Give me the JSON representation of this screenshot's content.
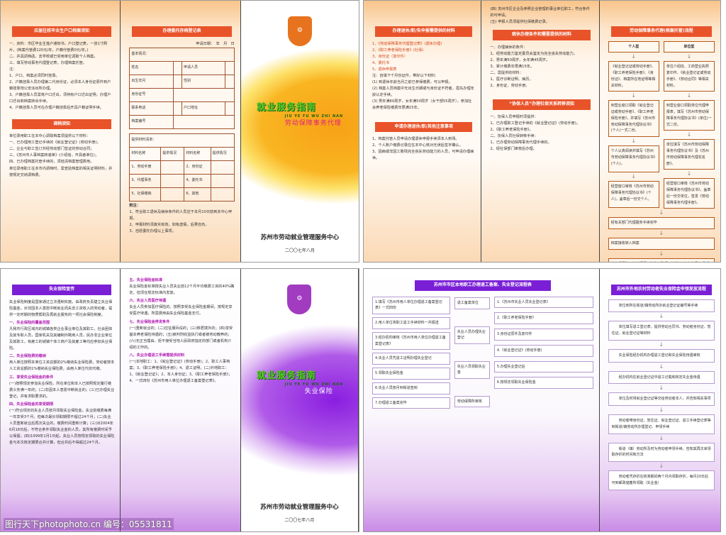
{
  "brochure_employment": {
    "panel1": {
      "head1": "应届往校毕业生户口档案须知",
      "items1": [
        "一、资料：市区毕业生落户通知书，户口登记表，一张1寸照片，(档案代管费120元/年，户籍代管费0元/年。)",
        "二、并具调档函，去学校或已受用单位调取个人档案。",
        "三、填写劳动事务代理登记表，办理档案托管。",
        "注：",
        "1、户口、档案必须同时挂靠。",
        "2、户籍挂靠人员办理第二代身份证，必须本人身份证原件到户籍挂靠地公安派出所办理。",
        "3、户籍挂靠人员需将户口迁出，须持有户口迁出证明，办理户口迁出和档案转出手续。",
        "4、户籍挂靠人员可在办理户籍挂靠后开具户籍证明手续。"
      ],
      "head2": "调档须知",
      "items2": [
        "单位录用职工在本中心调取档案须提供以下材料：",
        "一、已办理用工登记手续的《就业登记证》(劳动手册)；",
        "二、企业与职工签订并经劳动部门签证的劳动合同；",
        "三、《苏州市人事档案转递单》(介绍信，开具者单位)；",
        "四、已办理档案托管手续的，须结清档案管理费用。",
        "单位录用职工在本市内调档时，需查验档案的相关证明材料，并按规定交纳调档费。"
      ]
    },
    "panel2": {
      "head": "办理委托存档登记表",
      "date_row": "申请日期：　年　月　日",
      "section1": "基本情况：",
      "fields": [
        "姓名",
        "申请人员",
        "出生年月",
        "性别",
        "身份证号",
        "联系电话",
        "户口地址",
        "档案编号"
      ],
      "section2": "提供材料清单：",
      "materials_header": [
        "材料名称",
        "提供情况"
      ],
      "materials": [
        "1、劳动手册",
        "2、身份证",
        "3、代理事务",
        "4、委托书",
        "5、社保缴纳",
        "6、其他"
      ],
      "notes_head": "附注：",
      "notes": [
        "1、符合职工退休及病休条件的人员应于本月10日前到本中心申报。",
        "2、申报材料须真实有效，如有虚假，后果自负。",
        "3、自愿委托办理以上事项。"
      ]
    },
    "cover": {
      "title": "就业服务指南",
      "pinyin": "JIU YE FU WU ZHI NAN",
      "subtitle": "劳动保障事务代理",
      "org": "苏州市劳动就业管理服务中心",
      "org_pinyin": "SU ZHOU SHI LAO DONG JIU YE GUAN LI FU WU ZHONG XIN",
      "date": "二〇〇七年八月",
      "logo_text": "劳动"
    }
  },
  "brochure_agency": {
    "panel1": {
      "head1": "办理退休/职/失申报需提供的材料",
      "items1": [
        "1、《劳动保障事务代理登记表》(退休办理)",
        "2、《职工养老保险手册》(社保)",
        "3、身份证（复印件）",
        "4、委托书",
        "5、退休申报表"
      ],
      "note1": "注：自填下个月份证件，带好以下材料：",
      "paras1": [
        "(1) 到退休年龄当月之前已参保缴费，可以申报。",
        "(2) 档案人员档案中无出生日期或与身份证不符者，需先办理年龄认定手续。",
        "(3) 男年满60周岁，女年满50周岁（女干部55周岁），参加社会养老保险缴费年限满15年。"
      ],
      "head2": "申请办理退休/职/其他注意事项",
      "paras2": [
        "1、档案托管人员申请办理退休申报手续须本人到场。",
        "2、个人账户缴费记录应在本中心核对无误后签字确认。",
        "3、因病或非因工致残完全丧失劳动能力的人员，可申请办理病休。"
      ]
    },
    "panel2": {
      "paras0": [
        "(四) 苏州市区企业及参照企业管理的事业单位职工，符合条件的可申请。",
        "(五) 申报人员须提供社保缴费记录。"
      ],
      "head1": "病休办理条件和需要提供的材料",
      "paras1": [
        "一、办理病休的条件：",
        "1、经劳动能力鉴定委员会鉴定为完全丧失劳动能力。",
        "2、男年满50周岁、女年满45周岁。",
        "3、累计缴费年限满15年。",
        "二、需提供的材料：",
        "1、医疗诊断证明、病历。",
        "2、身份证、劳动手册。"
      ],
      "head2": "“协保人员”办理社保关系转移须知",
      "paras2": [
        "一、协保人员申报时须提供：",
        "1、已办理职工登记手续的《就业登记证》(劳动手册)。",
        "2、《职工养老保险手册》。",
        "二、协保人员社保转移手续：",
        "1、已办理劳动保障事务代理手续的。",
        "2、经社保部门审核后办理。"
      ]
    },
    "panel3": {
      "head": "劳动保障事务代理(档案托管)流程",
      "col_heads": [
        "个人型",
        "单位型"
      ],
      "rows": [
        [
          "《就业登记证或劳动手册》、《职工养老保险手册》、《身份证》、档案所在地证明等相关材料。",
          "单位介绍信、工商营业执照复印件、《就业登记证或劳动手册》、《劳动合同》等相关材料。"
        ],
        [
          "到营业窗口领取《就业登记证或劳动手册》、《职工养老保险手册》，并填写《苏州市劳动保障事务代理协议书》(个人)一式二份。",
          "到营业窗口领取单位代理申报表，填写《苏州市劳动保障事务代理协议书》(单位)一式二份。"
        ],
        [
          "个人认真阅读并填写《苏州市劳动保障事务代理协议书》(个人)。",
          "单位填写《苏州市劳动保障事务代理协议书》及《苏州市劳动保障事务代理花名册》。"
        ],
        [
          "经营窗口审核《苏州市劳动保障事务代理协议书》(个人)，盖章后一份交个人。",
          "经营窗口审核《苏州市劳动保障事务代理协议书》，盖章后一份交单位，签发《劳动保障事务代理手册》。"
        ]
      ],
      "steps": [
        "经有关部门代理服务手续完毕",
        "档案接收转入档案",
        "托管期间的：档案调阅、接收、整理、转递、“人人社保”、职称评定、档案证明等服务。"
      ]
    }
  },
  "brochure_unemployment": {
    "panel1": {
      "head": "失业保险宣传",
      "intro": "失业保险制度是国家通过立法强制实施，由政府负责建立失业保险基金，对非因本人意愿中断就业而失去工资收入的劳动者，提供一定时期的物质帮助及再就业服务的一项社会保险制度。",
      "sections": [
        {
          "title": "一、失业保险的覆盖范围",
          "text": "凡我市行政区域内的城镇各类企业事业单位及其职工，社会团体及其专职人员，国家机关及其编制外聘用人员，民办非企业单位及其职工，有雇工的城镇个体工商户及其雇工等均应参加失业保险。"
        },
        {
          "title": "二、失业保险费的缴纳",
          "text": "用人单位按照本单位工资总额的2%缴纳失业保险费，劳动者按本人工资总额的1%缴纳失业保险费，由用人单位代扣代缴。"
        },
        {
          "title": "三、享受失业保险金的条件",
          "text": "(一)按照规定参加失业保险，所在单位和本人已按照规定履行缴费义务满一年的；(二)非因本人意愿中断就业的；(三)已办理失业登记，并有求职要求的。"
        },
        {
          "title": "四、失业保险金的享受期限",
          "text": "(一)符合规定的失业人员按月领取失业保险金。失业前缴费每满一年享受3个月，但每次最长领取期限不超过24个月；(二)失业人员重新就业后再次失业的，缴费时间重新计算；(三)对2004年6月18日后，不符合条件领取失业金的人员，其所有缴费时间予以保留；(四)1999年1月1日起，失业人员按规定领取的失业保险金与本次核定期限合并计算，但合并后不得超过24个月。"
        }
      ]
    },
    "panel2": {
      "sections": [
        {
          "title": "五、失业保险金标准",
          "text": "失业保险金标准按失业人员失业前12个月平均缴费工资的40%确定，但须在规定标准内发放。"
        },
        {
          "title": "六、失业人员医疗待遇",
          "text": "失业人员参加医疗保险的，按照享受失业保险金期间，按规定享受医疗待遇，所需费用由失业保险基金支付。"
        },
        {
          "title": "七、失业保险金停发条件",
          "text": "(一)重新就业的；(二)应征服兵役的；(三)移居境外的；(四)享受基本养老保险待遇的；(五)被判刑收监执行或者被劳动教养的；(六)无正当理由，拒不接受当地人民政府指定的部门或者机构介绍的工作的。"
        },
        {
          "title": "八、失业办理退工手续需提供材料",
          "text": "(一)本地职工：1、《就业登记证》(劳动手册)；2、职工人事档案；3、《职工养老保险手册》；4、退工证明。(二)外地职工：1、《就业登记证》；2、本人身份证；3、《职工养老保险手册》；4、一式四份《苏州市用人单位办理退工备案登记表》。"
        }
      ]
    },
    "cover": {
      "title": "就业服务指南",
      "pinyin": "JIU YE FU WU ZHI NAN",
      "subtitle": "失业保险",
      "org": "苏州市劳动就业管理服务中心",
      "org_pinyin": "SU ZHOU SHI LAO DONG JIU YE GUAN LI FU WU ZHONG XIN",
      "date": "二〇〇七年八月",
      "logo_text": "劳动"
    }
  },
  "brochure_flow": {
    "head": "苏州市市区本地职工办理退工备案、失业登记流程表",
    "left_steps": [
      "1.填写《苏州市用人单位办理退工备案登记表》一式四份",
      "2.用人单位将职工退工手续材料一并报送",
      "3.经办机构审核《苏州市用人单位办理退工备案登记表》",
      "4.失业人员凭退工证明办理失业登记",
      "5.领取失业保险金",
      "6.失业人员按月到街道签到",
      "7.办理退工备案完毕"
    ],
    "mid_steps": [
      "退工备案单位",
      "失业人员办理失业登记",
      "失业人员领取失业金",
      "劳动保障所审核"
    ],
    "right_steps": [
      "1.《苏州市失业人员失业登记表》",
      "2.《职工养老保险手册》",
      "3.身份证原件及复印件",
      "4.《就业登记证》(劳动手册)",
      "5.办理失业登记后",
      "6.按规定领取失业保险金"
    ],
    "panel3": {
      "head": "苏州市外地农村劳动者失业保险金申领发放流程",
      "steps": [
        "单位到所在街道/镇劳动所办就业登记证编号等手续",
        "单位填写退工登记表，提供劳动合同书、劳动者身份证、暂住证、就业登记证等材料",
        "失业保险经办机构办理退工登记和失业保险待遇审核",
        "经办机构在就业登记证中退工记载和核定失业金待遇",
        "单位及时将就业登记证等交给劳动者本人，并告知相关事项",
        "劳动者带身份证、暂住证、就业登记证、退工手续登记表等到街道/镇劳动所办理登记、申领手续",
        "街道（镇）劳动所及时为劳动者申领手续，告知其再次来领取存折的时间和方法",
        "劳动者凭存折在核准期间两个月内领取存折，每月20日后可到邮政储蓄所领取（失业金）"
      ]
    }
  },
  "watermark": "图行天下photophoto.cn 编号：05531811",
  "colors": {
    "orange_accent": "#e9532a",
    "purple_accent": "#7a1fd6",
    "cover_green": "#5ecb2b",
    "cover_magenta": "#e0207d"
  }
}
